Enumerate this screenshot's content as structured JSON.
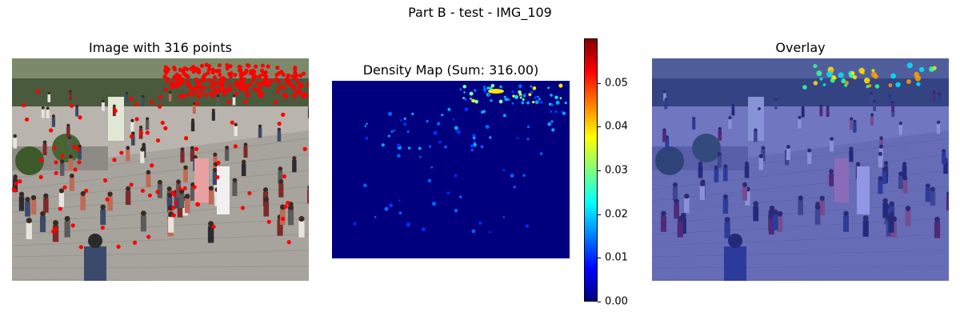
{
  "suptitle": "Part B - test - IMG_109",
  "panels": [
    {
      "title": "Image with 316 points",
      "kind": "photo-with-points",
      "point_count": 316,
      "point_color": "#ff0000"
    },
    {
      "title": "Density Map (Sum: 316.00)",
      "kind": "density-heatmap",
      "colormap": "jet"
    },
    {
      "title": "Overlay",
      "kind": "photo-with-density-overlay",
      "overlay_color": "#1a2bd8"
    }
  ],
  "chart_data": {
    "type": "heatmap",
    "title": "Density Map (Sum: 316.00)",
    "sum": 316.0,
    "colorbar": {
      "range": [
        0.0,
        0.06
      ],
      "ticks": [
        0.0,
        0.01,
        0.02,
        0.03,
        0.04,
        0.05
      ],
      "tick_labels": [
        "0.00",
        "0.01",
        "0.02",
        "0.03",
        "0.04",
        "0.05"
      ],
      "colormap": "jet"
    },
    "hotspot": "upper right region (crowd at back of scene)",
    "background_value": 0.0
  }
}
